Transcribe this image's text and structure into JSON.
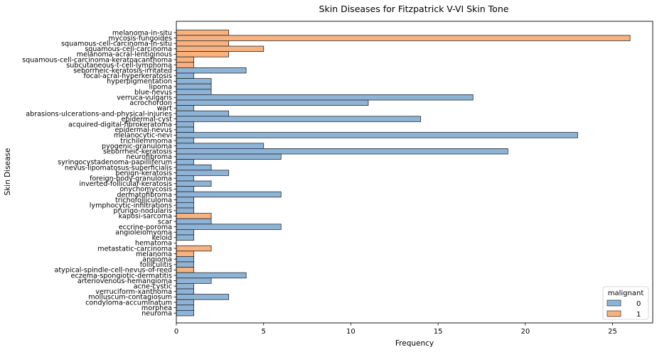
{
  "chart_data": {
    "type": "bar",
    "orientation": "horizontal",
    "title": "Skin Diseases for Fitzpatrick V-VI Skin Tone",
    "xlabel": "Frequency",
    "ylabel": "Skin Disease",
    "xlim": [
      0,
      27.3
    ],
    "xticks": [
      0,
      5,
      10,
      15,
      20,
      25
    ],
    "grid": false,
    "legend": {
      "title": "malignant",
      "position": "bottom-right",
      "entries": [
        "0",
        "1"
      ]
    },
    "colors": {
      "0": "#8db4d6",
      "1": "#f9b17e"
    },
    "categories": [
      "melanoma-in-situ",
      "mycosis-fungoides",
      "squamous-cell-carcinoma-in-situ",
      "squamous-cell-carcinoma",
      "melanoma-acral-lentiginous",
      "squamous-cell-carcinoma-keratoacanthoma",
      "subcutaneous-t-cell-lymphoma",
      "seborrheic-keratosis-irritated",
      "focal-acral-hyperkeratosis",
      "hyperpigmentation",
      "lipoma",
      "blue-nevus",
      "verruca-vulgaris",
      "acrochordon",
      "wart",
      "abrasions-ulcerations-and-physical-injuries",
      "epidermal-cyst",
      "acquired-digital-fibrokeratoma",
      "epidermal-nevus",
      "melanocytic-nevi",
      "trichilemmoma",
      "pyogenic-granuloma",
      "seborrheic-keratosis",
      "neurofibroma",
      "syringocystadenoma-papilliferum",
      "nevus-lipomatosus-superficialis",
      "benign-keratosis",
      "foreign-body-granuloma",
      "inverted-follicular-keratosis",
      "onychomycosis",
      "dermatofibroma",
      "trichofolliculoma",
      "lymphocytic-infiltrations",
      "prurigo-nodularis",
      "kaposi-sarcoma",
      "scar",
      "eccrine-poroma",
      "angioleiomyoma",
      "keloid",
      "hematoma",
      "metastatic-carcinoma",
      "melanoma",
      "angioma",
      "folliculitis",
      "atypical-spindle-cell-nevus-of-reed",
      "eczema-spongiotic-dermatitis",
      "arteriovenous-hemangioma",
      "acne-cystic",
      "verruciform-xanthoma",
      "molluscum-contagiosum",
      "condyloma-accuminatum",
      "morphea",
      "neuroma"
    ],
    "values": [
      3,
      26,
      3,
      5,
      3,
      1,
      1,
      4,
      1,
      2,
      2,
      2,
      17,
      11,
      1,
      3,
      14,
      1,
      1,
      23,
      1,
      5,
      19,
      6,
      1,
      2,
      3,
      1,
      2,
      1,
      6,
      1,
      1,
      1,
      2,
      2,
      6,
      1,
      1,
      0,
      2,
      1,
      1,
      1,
      1,
      4,
      2,
      1,
      1,
      3,
      1,
      1,
      1
    ],
    "malignant": [
      1,
      1,
      1,
      1,
      1,
      1,
      1,
      0,
      0,
      0,
      0,
      0,
      0,
      0,
      0,
      0,
      0,
      0,
      0,
      0,
      0,
      0,
      0,
      0,
      0,
      0,
      0,
      0,
      0,
      0,
      0,
      0,
      0,
      0,
      1,
      0,
      0,
      0,
      0,
      0,
      1,
      1,
      0,
      0,
      1,
      0,
      0,
      0,
      0,
      0,
      0,
      0,
      0
    ]
  }
}
